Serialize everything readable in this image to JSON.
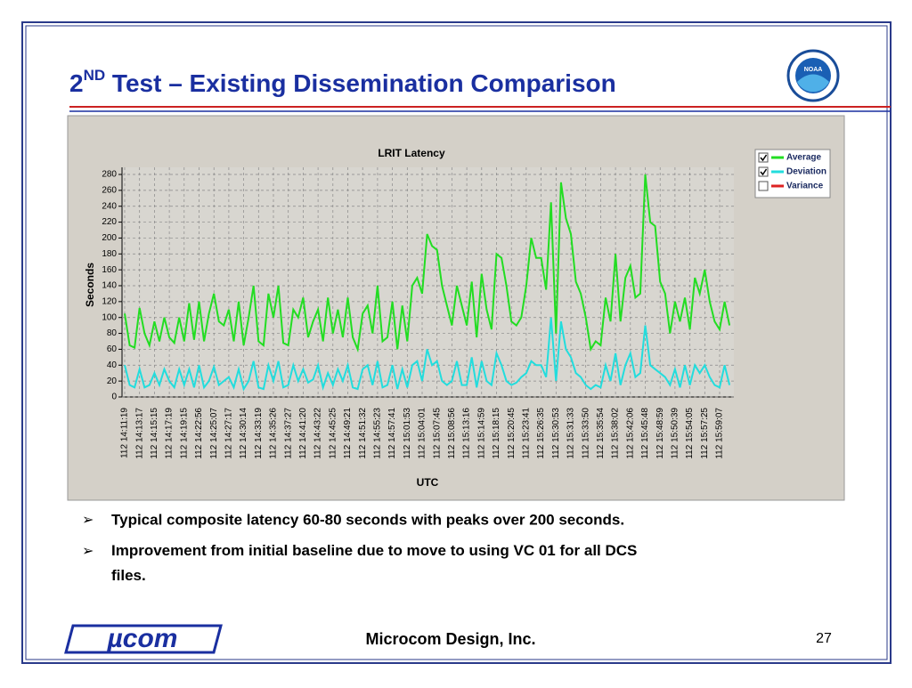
{
  "slide": {
    "title_number": "2",
    "title_suffix": "ND",
    "title_text": " Test – Existing Dissemination Comparison",
    "logo_text": "NOAA",
    "bullets": [
      "Typical composite latency 60-80 seconds with peaks over 200 seconds.",
      "Improvement from initial baseline due to move to using VC 01 for all DCS files."
    ],
    "footer": {
      "logo": "µcom",
      "company": "Microcom Design, Inc.",
      "page": "27"
    }
  },
  "chart_data": {
    "type": "line",
    "title": "LRIT Latency",
    "ylabel": "Seconds",
    "xlabel": "UTC",
    "categories": [
      "112 14:11:19",
      null,
      null,
      "112 14:13:17",
      null,
      null,
      "112 14:15:15",
      null,
      null,
      "112 14:17:19",
      null,
      null,
      "112 14:19:15",
      null,
      null,
      "112 14:22:56",
      null,
      null,
      "112 14:25:07",
      null,
      null,
      "112 14:27:17",
      null,
      null,
      "112 14:30:14",
      null,
      null,
      "112 14:33:19",
      null,
      null,
      "112 14:35:26",
      null,
      null,
      "112 14:37:27",
      null,
      null,
      "112 14:41:20",
      null,
      null,
      "112 14:43:22",
      null,
      null,
      "112 14:45:25",
      null,
      null,
      "112 14:49:21",
      null,
      null,
      "112 14:51:32",
      null,
      null,
      "112 14:55:23",
      null,
      null,
      "112 14:57:41",
      null,
      null,
      "112 15:01:53",
      null,
      null,
      "112 15:04:01",
      null,
      null,
      "112 15:07:45",
      null,
      null,
      "112 15:08:56",
      null,
      null,
      "112 15:13:16",
      null,
      null,
      "112 15:14:59",
      null,
      null,
      "112 15:18:15",
      null,
      null,
      "112 15:20:45",
      null,
      null,
      "112 15:23:41",
      null,
      null,
      "112 15:26:35",
      null,
      null,
      "112 15:30:53",
      null,
      null,
      "112 15:31:33",
      null,
      null,
      "112 15:33:50",
      null,
      null,
      "112 15:35:54",
      null,
      null,
      "112 15:38:02",
      null,
      null,
      "112 15:42:06",
      null,
      null,
      "112 15:45:48",
      null,
      null,
      "112 15:48:59",
      null,
      null,
      "112 15:50:39",
      null,
      null,
      "112 15:54:05",
      null,
      null,
      "112 15:57:25",
      null,
      null,
      "112 15:59:07",
      null,
      null
    ],
    "series": [
      {
        "name": "Average",
        "color": "#22dd22",
        "checked": true,
        "values": [
          105,
          65,
          62,
          112,
          80,
          65,
          95,
          70,
          100,
          75,
          68,
          100,
          70,
          118,
          72,
          120,
          70,
          105,
          130,
          95,
          90,
          110,
          70,
          120,
          65,
          100,
          140,
          70,
          65,
          130,
          100,
          140,
          68,
          65,
          110,
          100,
          125,
          75,
          95,
          110,
          70,
          125,
          80,
          110,
          75,
          125,
          75,
          60,
          105,
          115,
          80,
          140,
          70,
          75,
          120,
          60,
          115,
          70,
          140,
          150,
          130,
          205,
          190,
          185,
          140,
          115,
          90,
          140,
          115,
          90,
          145,
          75,
          155,
          110,
          85,
          180,
          175,
          140,
          95,
          90,
          100,
          140,
          200,
          175,
          175,
          135,
          245,
          80,
          270,
          225,
          205,
          145,
          130,
          100,
          60,
          70,
          65,
          125,
          95,
          180,
          95,
          150,
          165,
          125,
          130,
          280,
          220,
          215,
          145,
          130,
          80,
          120,
          95,
          125,
          85,
          150,
          130,
          160,
          120,
          95,
          85,
          120,
          90
        ]
      },
      {
        "name": "Deviation",
        "color": "#22dddd",
        "checked": true,
        "values": [
          40,
          15,
          12,
          35,
          12,
          15,
          30,
          15,
          35,
          20,
          12,
          35,
          15,
          35,
          12,
          40,
          12,
          20,
          38,
          15,
          20,
          25,
          12,
          35,
          10,
          20,
          45,
          12,
          10,
          40,
          20,
          45,
          12,
          15,
          40,
          20,
          35,
          18,
          22,
          40,
          12,
          30,
          15,
          35,
          20,
          40,
          12,
          10,
          35,
          40,
          15,
          45,
          12,
          15,
          40,
          10,
          35,
          12,
          40,
          45,
          20,
          60,
          40,
          45,
          20,
          15,
          20,
          45,
          15,
          15,
          50,
          12,
          45,
          20,
          15,
          55,
          40,
          20,
          15,
          18,
          25,
          30,
          45,
          40,
          40,
          25,
          100,
          20,
          95,
          60,
          50,
          30,
          25,
          15,
          10,
          15,
          12,
          40,
          20,
          55,
          15,
          40,
          55,
          25,
          30,
          90,
          40,
          35,
          30,
          25,
          15,
          35,
          12,
          40,
          15,
          40,
          30,
          40,
          25,
          15,
          12,
          40,
          15
        ]
      },
      {
        "name": "Variance",
        "color": "#dd2222",
        "checked": false,
        "values": [
          null,
          null,
          null,
          null,
          null,
          null,
          null,
          null,
          null,
          null,
          null,
          null,
          null,
          null,
          null,
          null,
          null,
          null,
          null,
          null,
          null,
          null,
          null,
          null,
          null,
          null,
          null,
          null,
          null,
          null,
          null,
          null,
          null,
          null,
          null,
          null,
          null,
          null,
          null,
          null,
          null,
          null,
          null,
          null,
          null,
          null,
          null,
          null,
          null,
          null,
          null,
          null,
          null,
          null,
          null,
          null,
          null,
          null,
          null,
          null,
          null,
          null,
          null,
          null,
          null,
          null,
          null,
          null,
          null,
          null,
          null,
          null,
          null,
          null,
          null,
          null,
          null,
          null,
          null,
          null,
          null,
          null,
          null,
          null,
          null,
          null,
          null,
          null,
          null,
          null,
          null,
          null,
          null,
          null,
          null,
          null,
          null,
          null,
          null,
          null,
          null,
          null,
          null,
          null,
          null,
          null,
          null,
          null,
          null,
          null,
          null,
          null,
          null,
          null,
          null,
          null,
          null,
          null,
          null,
          null,
          null,
          null,
          null
        ]
      }
    ],
    "ylim": [
      0,
      280
    ],
    "yticks": [
      0,
      20,
      40,
      60,
      80,
      100,
      120,
      140,
      160,
      180,
      200,
      220,
      240,
      260,
      280
    ],
    "grid": true,
    "legend": "upper right"
  }
}
